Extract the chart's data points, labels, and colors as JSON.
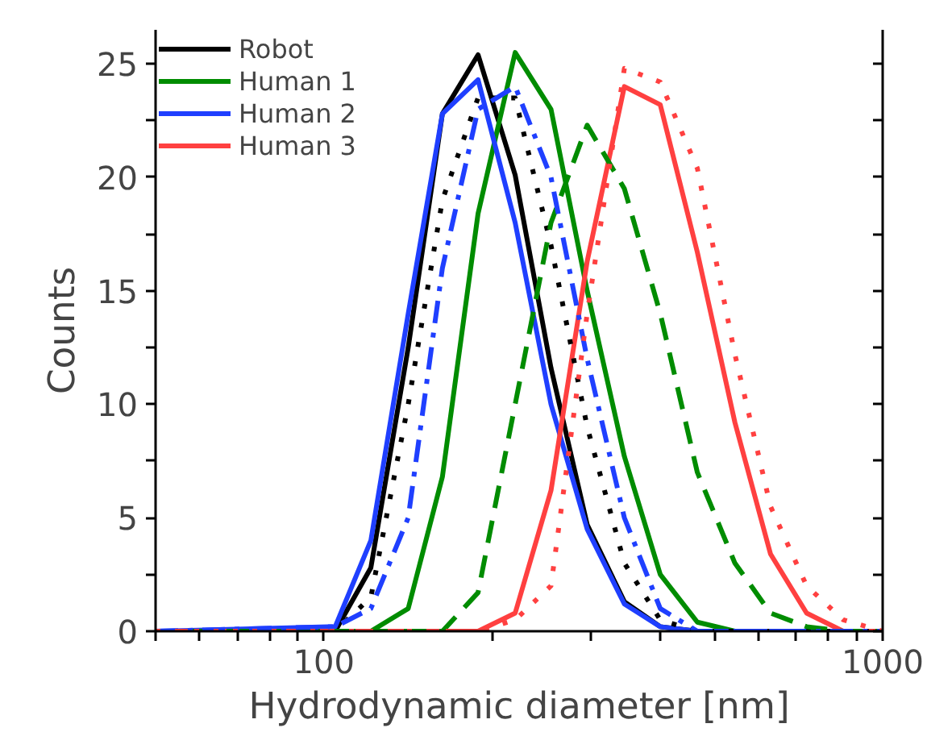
{
  "chart_data": {
    "type": "line",
    "xlabel": "Hydrodynamic diameter [nm]",
    "ylabel": "Counts",
    "log": "x",
    "x": [
      50,
      104.8,
      121.4,
      141.6,
      163,
      188.8,
      220,
      255,
      296,
      345,
      400,
      466,
      544,
      630,
      731,
      850,
      1000
    ],
    "xlim": [
      50,
      1000
    ],
    "xticks": [
      {
        "value": 50,
        "label": null
      },
      {
        "value": 60,
        "label": null
      },
      {
        "value": 70,
        "label": null
      },
      {
        "value": 80,
        "label": null
      },
      {
        "value": 90,
        "label": null
      },
      100,
      {
        "value": 200,
        "label": null
      },
      {
        "value": 300,
        "label": null
      },
      {
        "value": 400,
        "label": null
      },
      {
        "value": 500,
        "label": null
      },
      {
        "value": 600,
        "label": null
      },
      {
        "value": 700,
        "label": null
      },
      {
        "value": 800,
        "label": null
      },
      {
        "value": 900,
        "label": null
      },
      1000
    ],
    "ylim": [
      0,
      26.5
    ],
    "yticks": [
      0,
      {
        "value": 2.5,
        "label": null
      },
      5,
      {
        "value": 7.5,
        "label": null
      },
      10,
      {
        "value": 12.5,
        "label": null
      },
      15,
      {
        "value": 17.5,
        "label": null
      },
      20,
      {
        "value": 22.5,
        "label": null
      },
      25
    ],
    "grid": false,
    "legend": "top left",
    "marker": "none",
    "series": [
      {
        "name": "Robot",
        "color": "#000000",
        "line_style": "solid",
        "values": [
          0,
          0,
          2.8,
          12.5,
          22.8,
          25.4,
          20.1,
          11.6,
          4.7,
          1.3,
          0.2,
          0,
          0,
          0,
          0,
          0,
          0
        ]
      },
      {
        "name": "Human 1",
        "color": "#008c00",
        "line_style": "solid",
        "values": [
          0,
          0,
          0,
          1,
          6.8,
          18.4,
          25.5,
          23,
          15,
          7.7,
          2.5,
          0.4,
          0,
          0,
          0,
          0,
          0
        ]
      },
      {
        "name": "Human 2",
        "color": "#1f3fff",
        "line_style": "solid",
        "values": [
          0,
          0.2,
          4,
          14,
          22.8,
          24.3,
          18,
          10,
          4.5,
          1.2,
          0.2,
          0,
          0,
          0,
          0,
          0,
          0
        ]
      },
      {
        "name": "Human 3",
        "color": "#ff4040",
        "line_style": "solid",
        "values": [
          0,
          0,
          0,
          0,
          0,
          0,
          0.8,
          6.2,
          16.3,
          24,
          23.2,
          16.7,
          9.2,
          3.4,
          0.8,
          0,
          0
        ]
      },
      {
        "color": "#000000",
        "line_style": "dotted",
        "values": [
          0,
          0,
          1.5,
          10,
          19,
          23.5,
          23.5,
          17,
          9,
          3,
          0.5,
          0,
          0,
          0,
          0,
          0,
          0
        ]
      },
      {
        "color": "#008c00",
        "line_style": "dashed",
        "values": [
          0,
          0,
          0,
          0,
          0,
          1.7,
          10,
          18,
          22.3,
          19.5,
          14,
          7,
          3,
          0.8,
          0.2,
          0,
          0
        ]
      },
      {
        "color": "#1f3fff",
        "line_style": "dashdot",
        "values": [
          0,
          0.2,
          1,
          5,
          16,
          23,
          24,
          20,
          12,
          5,
          1,
          0,
          0,
          0,
          0,
          0,
          0
        ]
      },
      {
        "color": "#ff4040",
        "line_style": "dotted",
        "values": [
          0,
          0,
          0,
          0,
          0,
          0,
          0.5,
          2,
          14,
          24.8,
          24.2,
          20.4,
          12.2,
          5.5,
          2,
          0.5,
          0
        ]
      }
    ]
  }
}
